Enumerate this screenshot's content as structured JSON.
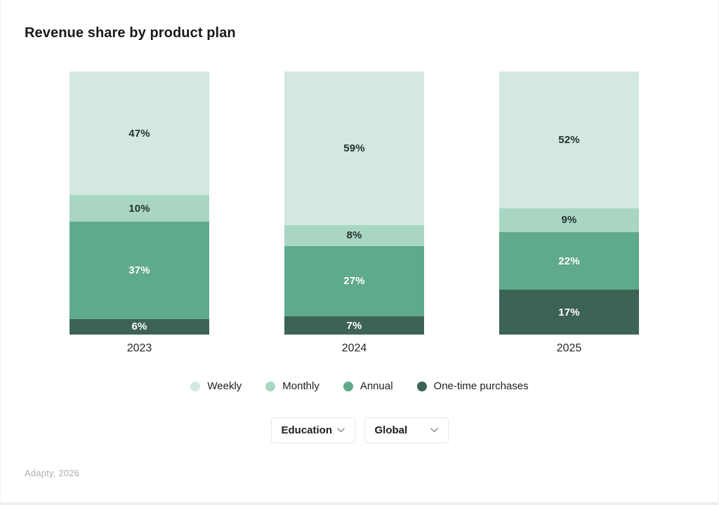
{
  "page": {
    "title": "Revenue share by product plan",
    "source_note": "Adapty, 2026"
  },
  "filters": {
    "segment": {
      "label": "Education"
    },
    "region": {
      "label": "Global"
    }
  },
  "chart_data": {
    "type": "bar",
    "subtype": "stacked-100-percent",
    "title": "Revenue share by product plan",
    "categories": [
      "2023",
      "2024",
      "2025"
    ],
    "series": [
      {
        "name": "Weekly",
        "values": [
          47,
          59,
          52
        ],
        "color": "#d3e8df",
        "label_color": "#273330"
      },
      {
        "name": "Monthly",
        "values": [
          10,
          8,
          9
        ],
        "color": "#a8d6c3",
        "label_color": "#273330"
      },
      {
        "name": "Annual",
        "values": [
          37,
          27,
          22
        ],
        "color": "#5fa98c",
        "label_color": "#ffffff"
      },
      {
        "name": "One-time purchases",
        "values": [
          6,
          7,
          17
        ],
        "color": "#3c6354",
        "label_color": "#ffffff"
      }
    ],
    "value_suffix": "%",
    "ylim": [
      0,
      100
    ],
    "grid": false,
    "axes_shown": false,
    "legend_position": "bottom"
  }
}
